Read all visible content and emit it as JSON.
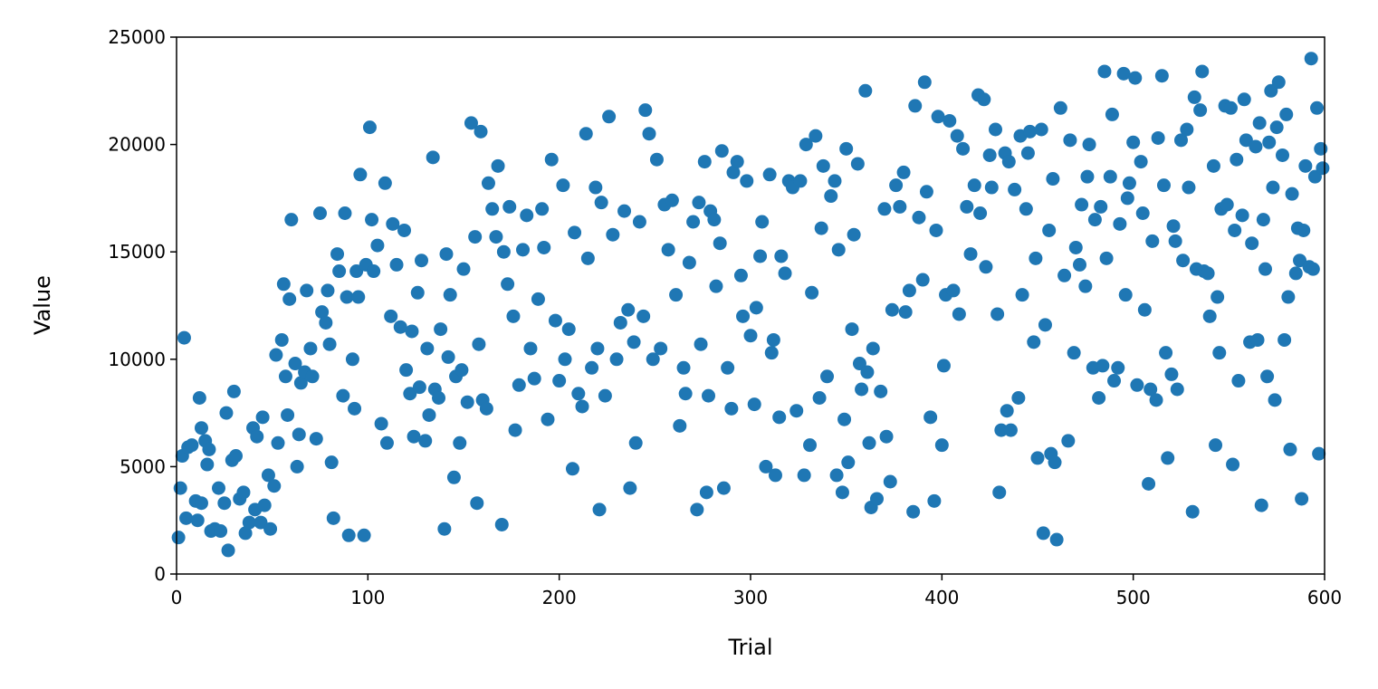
{
  "chart_data": {
    "type": "scatter",
    "xlabel": "Trial",
    "ylabel": "Value",
    "xlim": [
      0,
      600
    ],
    "ylim": [
      0,
      25000
    ],
    "xticks": [
      0,
      100,
      200,
      300,
      400,
      500,
      600
    ],
    "yticks": [
      0,
      5000,
      10000,
      15000,
      20000,
      25000
    ],
    "x": [
      1,
      2,
      3,
      4,
      5,
      6,
      8,
      10,
      11,
      12,
      13,
      13,
      15,
      16,
      17,
      18,
      20,
      22,
      23,
      25,
      26,
      27,
      29,
      30,
      31,
      33,
      35,
      36,
      38,
      40,
      41,
      42,
      44,
      45,
      46,
      48,
      49,
      51,
      52,
      53,
      55,
      56,
      57,
      58,
      59,
      60,
      62,
      63,
      64,
      65,
      67,
      68,
      70,
      71,
      73,
      75,
      76,
      78,
      79,
      80,
      81,
      82,
      84,
      85,
      87,
      88,
      89,
      90,
      92,
      93,
      94,
      95,
      96,
      98,
      99,
      101,
      102,
      103,
      105,
      107,
      109,
      110,
      112,
      113,
      115,
      117,
      119,
      120,
      122,
      123,
      124,
      126,
      127,
      128,
      130,
      131,
      132,
      134,
      135,
      137,
      138,
      140,
      141,
      142,
      143,
      145,
      146,
      148,
      149,
      150,
      152,
      154,
      156,
      157,
      158,
      159,
      160,
      162,
      163,
      165,
      167,
      168,
      170,
      171,
      173,
      174,
      176,
      177,
      179,
      181,
      183,
      185,
      187,
      189,
      191,
      192,
      194,
      196,
      198,
      200,
      202,
      203,
      205,
      207,
      208,
      210,
      212,
      214,
      215,
      217,
      219,
      220,
      221,
      222,
      224,
      226,
      228,
      230,
      232,
      234,
      236,
      237,
      239,
      240,
      242,
      244,
      245,
      247,
      249,
      251,
      253,
      255,
      257,
      259,
      261,
      263,
      265,
      266,
      268,
      270,
      272,
      273,
      274,
      276,
      277,
      278,
      279,
      281,
      282,
      284,
      285,
      286,
      288,
      290,
      291,
      293,
      295,
      296,
      298,
      300,
      302,
      303,
      305,
      306,
      308,
      310,
      311,
      312,
      313,
      315,
      316,
      318,
      320,
      322,
      324,
      326,
      328,
      329,
      331,
      332,
      334,
      336,
      337,
      338,
      340,
      342,
      344,
      345,
      346,
      348,
      349,
      350,
      351,
      353,
      354,
      356,
      357,
      358,
      360,
      361,
      362,
      363,
      364,
      366,
      368,
      370,
      371,
      373,
      374,
      376,
      378,
      380,
      381,
      383,
      385,
      386,
      388,
      390,
      391,
      392,
      394,
      396,
      397,
      398,
      400,
      401,
      402,
      404,
      406,
      408,
      409,
      411,
      413,
      415,
      417,
      419,
      420,
      422,
      423,
      425,
      426,
      428,
      429,
      430,
      431,
      433,
      434,
      435,
      436,
      438,
      440,
      441,
      442,
      444,
      445,
      446,
      448,
      449,
      450,
      452,
      453,
      454,
      456,
      457,
      458,
      459,
      460,
      462,
      464,
      466,
      467,
      469,
      470,
      472,
      473,
      475,
      476,
      477,
      479,
      480,
      482,
      483,
      484,
      485,
      486,
      488,
      489,
      490,
      492,
      493,
      495,
      496,
      497,
      498,
      500,
      501,
      502,
      504,
      505,
      506,
      508,
      509,
      510,
      512,
      513,
      515,
      516,
      517,
      518,
      520,
      521,
      522,
      523,
      525,
      526,
      528,
      529,
      531,
      532,
      533,
      535,
      536,
      537,
      539,
      540,
      542,
      543,
      544,
      545,
      546,
      548,
      549,
      551,
      552,
      553,
      554,
      555,
      557,
      558,
      559,
      561,
      562,
      564,
      565,
      566,
      567,
      568,
      569,
      570,
      571,
      572,
      573,
      574,
      575,
      576,
      578,
      579,
      580,
      581,
      582,
      583,
      585,
      586,
      587,
      588,
      589,
      590,
      592,
      593,
      594,
      595,
      596,
      597,
      598,
      599
    ],
    "series": [
      {
        "color": "#1f77b4",
        "values": [
          1700,
          4000,
          5500,
          11000,
          2600,
          5900,
          6000,
          3400,
          2500,
          8200,
          3300,
          6800,
          6200,
          5100,
          5800,
          2000,
          2100,
          4000,
          2000,
          3300,
          7500,
          1100,
          5300,
          8500,
          5500,
          3500,
          3800,
          1900,
          2400,
          6800,
          3000,
          6400,
          2400,
          7300,
          3200,
          4600,
          2100,
          4100,
          10200,
          6100,
          10900,
          13500,
          9200,
          7400,
          12800,
          16500,
          9800,
          5000,
          6500,
          8900,
          9400,
          13200,
          10500,
          9200,
          6300,
          16800,
          12200,
          11700,
          13200,
          10700,
          5200,
          2600,
          14900,
          14100,
          8300,
          16800,
          12900,
          1800,
          10000,
          7700,
          14100,
          12900,
          18600,
          1800,
          14400,
          20800,
          16500,
          14100,
          15300,
          7000,
          18200,
          6100,
          12000,
          16300,
          14400,
          11500,
          16000,
          9500,
          8400,
          11300,
          6400,
          13100,
          8700,
          14600,
          6200,
          10500,
          7400,
          19400,
          8600,
          8200,
          11400,
          2100,
          14900,
          10100,
          13000,
          4500,
          9200,
          6100,
          9500,
          14200,
          8000,
          21000,
          15700,
          3300,
          10700,
          20600,
          8100,
          7700,
          18200,
          17000,
          15700,
          19000,
          2300,
          15000,
          13500,
          17100,
          12000,
          6700,
          8800,
          15100,
          16700,
          10500,
          9100,
          12800,
          17000,
          15200,
          7200,
          19300,
          11800,
          9000,
          18100,
          10000,
          11400,
          4900,
          15900,
          8400,
          7800,
          20500,
          14700,
          9600,
          18000,
          10500,
          3000,
          17300,
          8300,
          21300,
          15800,
          10000,
          11700,
          16900,
          12300,
          4000,
          10800,
          6100,
          16400,
          12000,
          21600,
          20500,
          10000,
          19300,
          10500,
          17200,
          15100,
          17400,
          13000,
          6900,
          9600,
          8400,
          14500,
          16400,
          3000,
          17300,
          10700,
          19200,
          3800,
          8300,
          16900,
          16500,
          13400,
          15400,
          19700,
          4000,
          9600,
          7700,
          18700,
          19200,
          13900,
          12000,
          18300,
          11100,
          7900,
          12400,
          14800,
          16400,
          5000,
          18600,
          10300,
          10900,
          4600,
          7300,
          14800,
          14000,
          18300,
          18000,
          7600,
          18300,
          4600,
          20000,
          6000,
          13100,
          20400,
          8200,
          16100,
          19000,
          9200,
          17600,
          18300,
          4600,
          15100,
          3800,
          7200,
          19800,
          5200,
          11400,
          15800,
          19100,
          9800,
          8600,
          22500,
          9400,
          6100,
          3100,
          10500,
          3500,
          8500,
          17000,
          6400,
          4300,
          12300,
          18100,
          17100,
          18700,
          12200,
          13200,
          2900,
          21800,
          16600,
          13700,
          22900,
          17800,
          7300,
          3400,
          16000,
          21300,
          6000,
          9700,
          13000,
          21100,
          13200,
          20400,
          12100,
          19800,
          17100,
          14900,
          18100,
          22300,
          16800,
          22100,
          14300,
          19500,
          18000,
          20700,
          12100,
          3800,
          6700,
          19600,
          7600,
          19200,
          6700,
          17900,
          8200,
          20400,
          13000,
          17000,
          19600,
          20600,
          10800,
          14700,
          5400,
          20700,
          1900,
          11600,
          16000,
          5600,
          18400,
          5200,
          1600,
          21700,
          13900,
          6200,
          20200,
          10300,
          15200,
          14400,
          17200,
          13400,
          18500,
          20000,
          9600,
          16500,
          8200,
          17100,
          9700,
          23400,
          14700,
          18500,
          21400,
          9000,
          9600,
          16300,
          23300,
          13000,
          17500,
          18200,
          20100,
          23100,
          8800,
          19200,
          16800,
          12300,
          4200,
          8600,
          15500,
          8100,
          20300,
          23200,
          18100,
          10300,
          5400,
          9300,
          16200,
          15500,
          8600,
          20200,
          14600,
          20700,
          18000,
          2900,
          22200,
          14200,
          21600,
          23400,
          14100,
          14000,
          12000,
          19000,
          6000,
          12900,
          10300,
          17000,
          21800,
          17200,
          21700,
          5100,
          16000,
          19300,
          9000,
          16700,
          22100,
          20200,
          10800,
          15400,
          19900,
          10900,
          21000,
          3200,
          16500,
          14200,
          9200,
          20100,
          22500,
          18000,
          8100,
          20800,
          22900,
          19500,
          10900,
          21400,
          12900,
          5800,
          17700,
          14000,
          16100,
          14600,
          3500,
          16000,
          19000,
          14300,
          24000,
          14200,
          18500,
          21700,
          5600,
          19800,
          18900
        ]
      }
    ]
  }
}
